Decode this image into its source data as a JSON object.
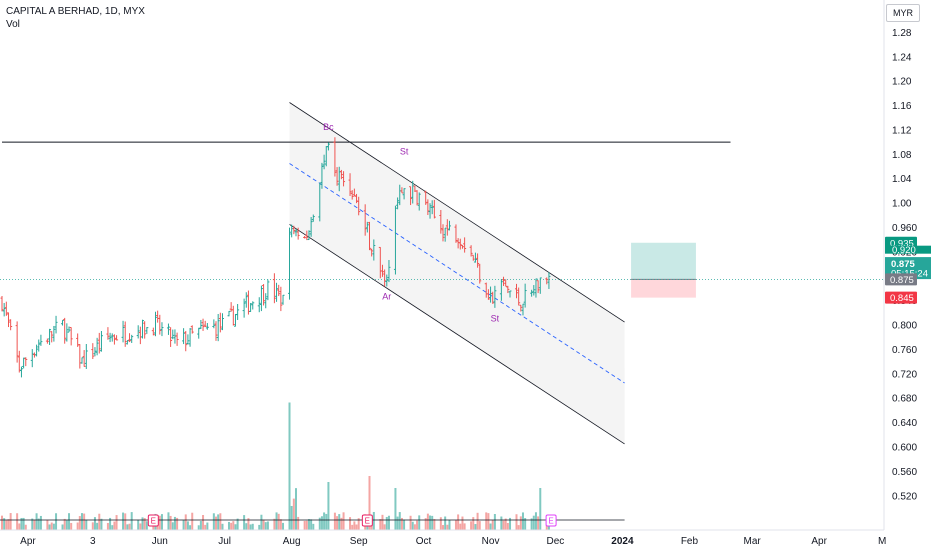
{
  "header": {
    "symbol_line": "CAPITAL A BERHAD, 1D, MYX",
    "indicator": "Vol"
  },
  "currency_button": "MYR",
  "colors": {
    "up": "#26a69a",
    "down": "#ef5350",
    "up_volume": "#80c9c1",
    "down_volume": "#f4a5a3",
    "annotation": "#9c27b0",
    "channel_fill": "#f2f2f2",
    "profit_zone": "#b2dfdb",
    "loss_zone": "#ffcdd2",
    "last_price_tag": "#26a69a",
    "target_tag": "#089981",
    "stop_tag": "#f23645",
    "entry_tag": "#787b86",
    "midline": "#2962ff",
    "event_marker": "#e91e63"
  },
  "chart_data": {
    "type": "candlestick",
    "interval": "1D",
    "y_axis": {
      "position": "right",
      "ticks": [
        "1.28",
        "1.24",
        "1.20",
        "1.16",
        "1.12",
        "1.08",
        "1.04",
        "1.00",
        "0.960",
        "0.920",
        "0.880",
        "0.840",
        "0.800",
        "0.760",
        "0.720",
        "0.680",
        "0.640",
        "0.600",
        "0.560",
        "0.520"
      ],
      "range": [
        0.5,
        1.32
      ]
    },
    "x_axis": {
      "ticks": [
        "Apr",
        "3",
        "Jun",
        "Jul",
        "Aug",
        "Sep",
        "Oct",
        "Nov",
        "Dec",
        "2024",
        "Feb",
        "Mar",
        "Apr",
        "M"
      ],
      "range": [
        "2023-03-20",
        "2024-05-01"
      ]
    },
    "ohlc_keypoints": [
      {
        "date": "2023-03-20",
        "close": 0.84
      },
      {
        "date": "2023-03-28",
        "close": 0.73
      },
      {
        "date": "2023-04-06",
        "close": 0.77
      },
      {
        "date": "2023-04-17",
        "close": 0.8
      },
      {
        "date": "2023-04-26",
        "close": 0.74
      },
      {
        "date": "2023-05-08",
        "close": 0.78
      },
      {
        "date": "2023-05-19",
        "close": 0.79
      },
      {
        "date": "2023-05-30",
        "close": 0.8
      },
      {
        "date": "2023-06-09",
        "close": 0.77
      },
      {
        "date": "2023-06-20",
        "close": 0.79
      },
      {
        "date": "2023-06-30",
        "close": 0.8
      },
      {
        "date": "2023-07-10",
        "close": 0.83
      },
      {
        "date": "2023-07-21",
        "close": 0.86
      },
      {
        "date": "2023-07-28",
        "close": 0.84
      },
      {
        "date": "2023-07-31",
        "close": 0.95
      },
      {
        "date": "2023-08-08",
        "close": 0.94
      },
      {
        "date": "2023-08-14",
        "close": 1.04
      },
      {
        "date": "2023-08-18",
        "close": 1.09
      },
      {
        "date": "2023-08-22",
        "close": 1.05
      },
      {
        "date": "2023-08-29",
        "close": 1.02
      },
      {
        "date": "2023-09-07",
        "close": 0.93
      },
      {
        "date": "2023-09-14",
        "close": 0.88
      },
      {
        "date": "2023-09-20",
        "close": 1.03
      },
      {
        "date": "2023-09-29",
        "close": 1.01
      },
      {
        "date": "2023-10-09",
        "close": 0.96
      },
      {
        "date": "2023-10-17",
        "close": 0.95
      },
      {
        "date": "2023-10-23",
        "close": 0.92
      },
      {
        "date": "2023-10-30",
        "close": 0.86
      },
      {
        "date": "2023-11-02",
        "close": 0.84
      },
      {
        "date": "2023-11-06",
        "close": 0.87
      },
      {
        "date": "2023-11-14",
        "close": 0.84
      },
      {
        "date": "2023-11-20",
        "close": 0.85
      },
      {
        "date": "2023-11-24",
        "close": 0.88
      },
      {
        "date": "2023-11-28",
        "close": 0.875
      }
    ],
    "volume_spikes": [
      {
        "date": "2023-07-31",
        "rel": 0.85
      },
      {
        "date": "2023-08-18",
        "rel": 0.32
      },
      {
        "date": "2023-09-06",
        "rel": 0.36
      },
      {
        "date": "2023-09-18",
        "rel": 0.28
      },
      {
        "date": "2023-11-24",
        "rel": 0.28
      }
    ],
    "annotations": [
      {
        "text": "Bc",
        "date": "2023-08-18",
        "price": 1.12
      },
      {
        "text": "St",
        "date": "2023-09-22",
        "price": 1.08
      },
      {
        "text": "Ar",
        "date": "2023-09-14",
        "price": 0.842
      },
      {
        "text": "St",
        "date": "2023-11-03",
        "price": 0.806
      }
    ],
    "horizontal_line": {
      "price": 1.1,
      "from": "2023-03-20",
      "to": "2024-02-20"
    },
    "channel": {
      "upper": [
        {
          "date": "2023-07-31",
          "price": 1.165
        },
        {
          "date": "2024-01-02",
          "price": 0.805
        }
      ],
      "middle": [
        {
          "date": "2023-07-31",
          "price": 1.065
        },
        {
          "date": "2024-01-02",
          "price": 0.705
        }
      ],
      "lower": [
        {
          "date": "2023-07-31",
          "price": 0.965
        },
        {
          "date": "2024-01-02",
          "price": 0.605
        }
      ]
    },
    "position_tool": {
      "entry": 0.875,
      "target": 0.935,
      "stop": 0.845,
      "from": "2024-01-05",
      "to": "2024-02-04"
    },
    "price_tags": [
      {
        "price": "0.935",
        "value": 0.935,
        "kind": "target"
      },
      {
        "price": "0.920",
        "value": 0.922,
        "kind": "partial"
      },
      {
        "price": "0.875",
        "value": 0.9,
        "kind": "last",
        "countdown": "05:15:24"
      },
      {
        "price": "0.875",
        "value": 0.875,
        "kind": "entry"
      },
      {
        "price": "0.845",
        "value": 0.845,
        "kind": "stop"
      }
    ],
    "event_markers": [
      {
        "label": "E",
        "date": "2023-05-29",
        "color": "#e91e63"
      },
      {
        "label": "E",
        "date": "2023-09-05",
        "color": "#e91e63"
      },
      {
        "label": "E",
        "date": "2023-11-29",
        "color": "#e040fb"
      }
    ]
  }
}
